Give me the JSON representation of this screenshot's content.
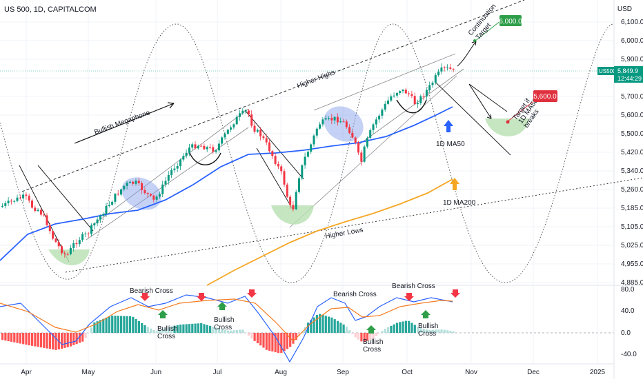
{
  "header": {
    "symbol_line": "US 500, 1D, CAPITALCOM",
    "currency": "USD"
  },
  "chart_data": {
    "type": "candlestick",
    "price_axis": {
      "ticks": [
        "6,100.0",
        "6,000.0",
        "5,900.0",
        "5,800.0",
        "5,700.0",
        "5,600.0",
        "5,500.0",
        "5,420.0",
        "5,340.0",
        "5,260.0",
        "5,185.0",
        "5,105.0",
        "5,025.0",
        "4,955.0",
        "4,885.0"
      ]
    },
    "indicator_axis": {
      "ticks": [
        "80.0",
        "40.0",
        "0.0",
        "-40.0"
      ]
    },
    "time_axis": {
      "ticks": [
        "Apr",
        "May",
        "Jun",
        "Jul",
        "Aug",
        "Sep",
        "Oct",
        "Nov",
        "Dec",
        "2025"
      ]
    },
    "last_price": {
      "symbol": "US500",
      "price": "5,849.9",
      "countdown": "12:44:29"
    },
    "targets": [
      {
        "label": "6,000.0",
        "color": "#2e9e48"
      },
      {
        "label": "5,600.0",
        "color": "#e0303e"
      }
    ],
    "annotations": [
      "Bullish Megaphone",
      "Higher Highs",
      "Higher Lows",
      "Continuation Target",
      "Target if 1D MA50 breaks",
      "1D MA50",
      "1D MA200",
      "Bearish Cross",
      "Bullish Cross"
    ],
    "series": [
      {
        "name": "1D MA50",
        "color": "#2962ff"
      },
      {
        "name": "1D MA200",
        "color": "#f5a623"
      }
    ],
    "colors": {
      "up": "#089981",
      "down": "#f23645",
      "ma50": "#2962ff",
      "ma200": "#f5a623",
      "green_zone": "#b7e0b0",
      "blue_zone": "#7f9be8",
      "macd_line": "#2962ff",
      "signal_line": "#f57c1f"
    }
  }
}
